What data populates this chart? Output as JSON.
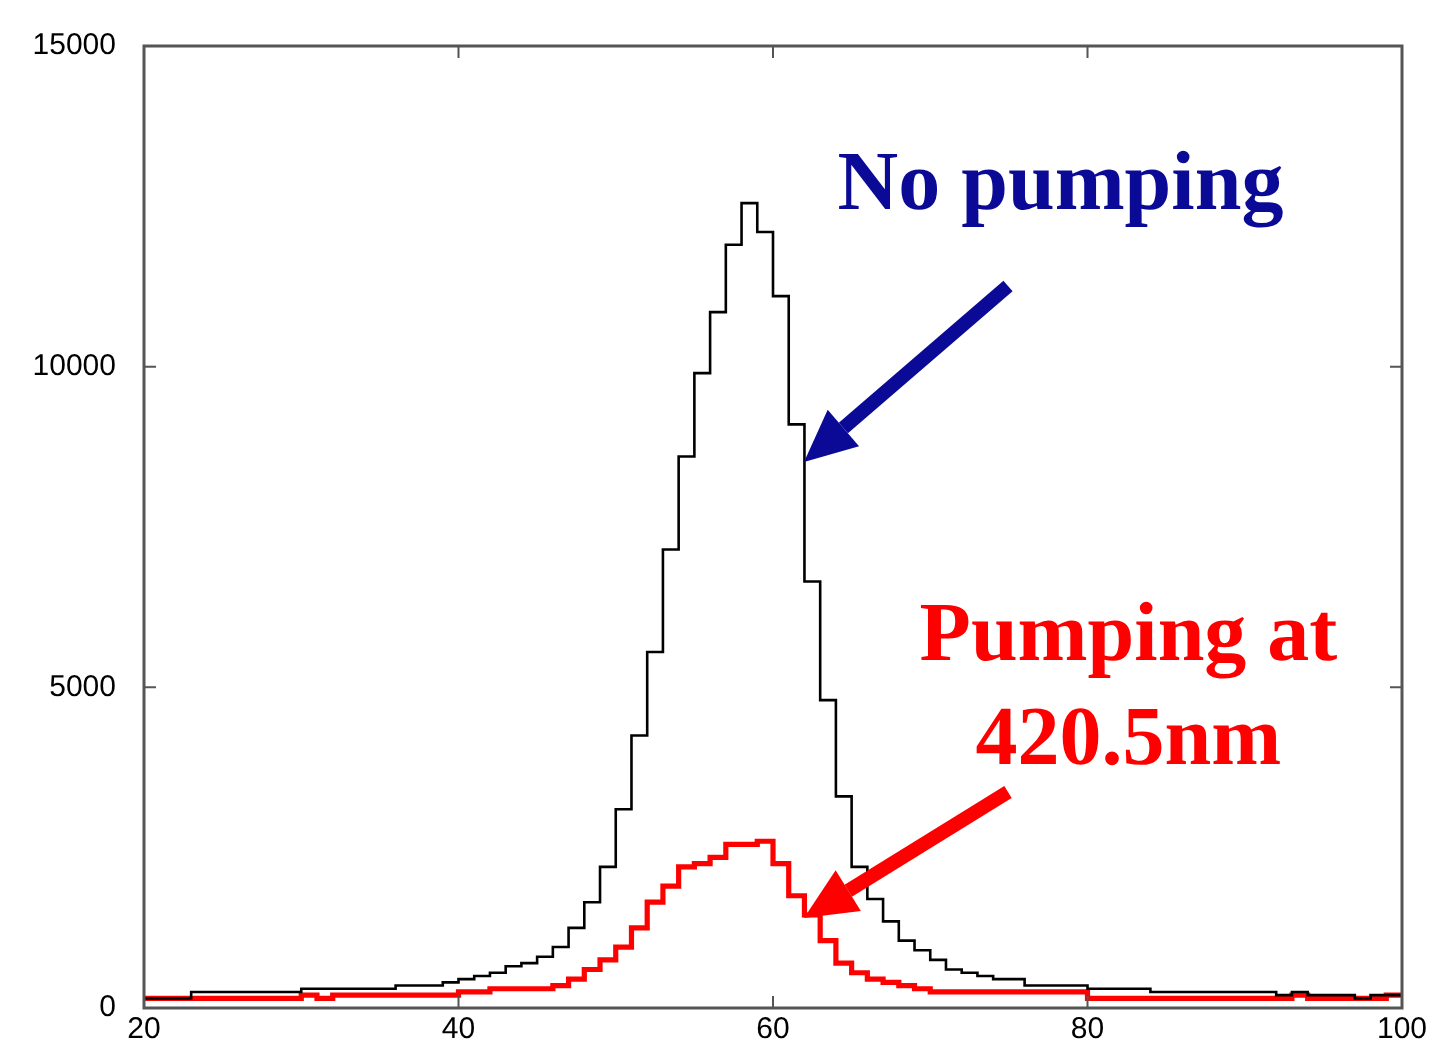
{
  "chart_data": {
    "type": "histogram",
    "bins": [
      20,
      21,
      22,
      23,
      24,
      25,
      26,
      27,
      28,
      29,
      30,
      31,
      32,
      33,
      34,
      35,
      36,
      37,
      38,
      39,
      40,
      41,
      42,
      43,
      44,
      45,
      46,
      47,
      48,
      49,
      50,
      51,
      52,
      53,
      54,
      55,
      56,
      57,
      58,
      59,
      60,
      61,
      62,
      63,
      64,
      65,
      66,
      67,
      68,
      69,
      70,
      71,
      72,
      73,
      74,
      75,
      76,
      77,
      78,
      79,
      80,
      81,
      82,
      83,
      84,
      85,
      86,
      87,
      88,
      89,
      90,
      91,
      92,
      93,
      94,
      95,
      96,
      97,
      98,
      99,
      100
    ],
    "series": [
      {
        "color": "#000000",
        "values": [
          150,
          150,
          150,
          250,
          250,
          250,
          250,
          250,
          250,
          250,
          300,
          300,
          300,
          300,
          300,
          300,
          350,
          350,
          350,
          400,
          450,
          500,
          550,
          650,
          700,
          800,
          950,
          1250,
          1650,
          2200,
          3100,
          4250,
          5550,
          7150,
          8600,
          9900,
          10850,
          11900,
          12550,
          12100,
          11100,
          9100,
          6650,
          4800,
          3300,
          2200,
          1700,
          1350,
          1050,
          900,
          750,
          600,
          550,
          500,
          450,
          450,
          350,
          350,
          350,
          350,
          300,
          300,
          300,
          300,
          250,
          250,
          250,
          250,
          250,
          250,
          250,
          250,
          200,
          250,
          200,
          200,
          200,
          150,
          200,
          200
        ]
      },
      {
        "color": "#ff0000",
        "values": [
          150,
          150,
          150,
          150,
          150,
          150,
          150,
          150,
          150,
          150,
          200,
          150,
          200,
          200,
          200,
          200,
          200,
          200,
          200,
          200,
          250,
          250,
          300,
          300,
          300,
          300,
          350,
          450,
          600,
          750,
          950,
          1250,
          1650,
          1900,
          2200,
          2250,
          2350,
          2550,
          2550,
          2600,
          2250,
          1750,
          1450,
          1050,
          700,
          550,
          450,
          400,
          350,
          300,
          250,
          250,
          250,
          250,
          250,
          250,
          250,
          250,
          250,
          250,
          150,
          150,
          150,
          150,
          150,
          150,
          150,
          150,
          150,
          150,
          150,
          150,
          150,
          200,
          150,
          150,
          150,
          150,
          150,
          200
        ]
      }
    ],
    "xlim": [
      20,
      100
    ],
    "xticks": [
      20,
      40,
      60,
      80,
      100
    ],
    "ylim": [
      0,
      15000
    ],
    "yticks": [
      0,
      5000,
      10000,
      15000
    ],
    "grid": false,
    "legend": false,
    "annotations": [
      {
        "text": "No pumping",
        "x": 62,
        "y": 8500
      },
      {
        "text": "Pumping at 420.5nm",
        "x": 62,
        "y": 1400
      }
    ]
  }
}
